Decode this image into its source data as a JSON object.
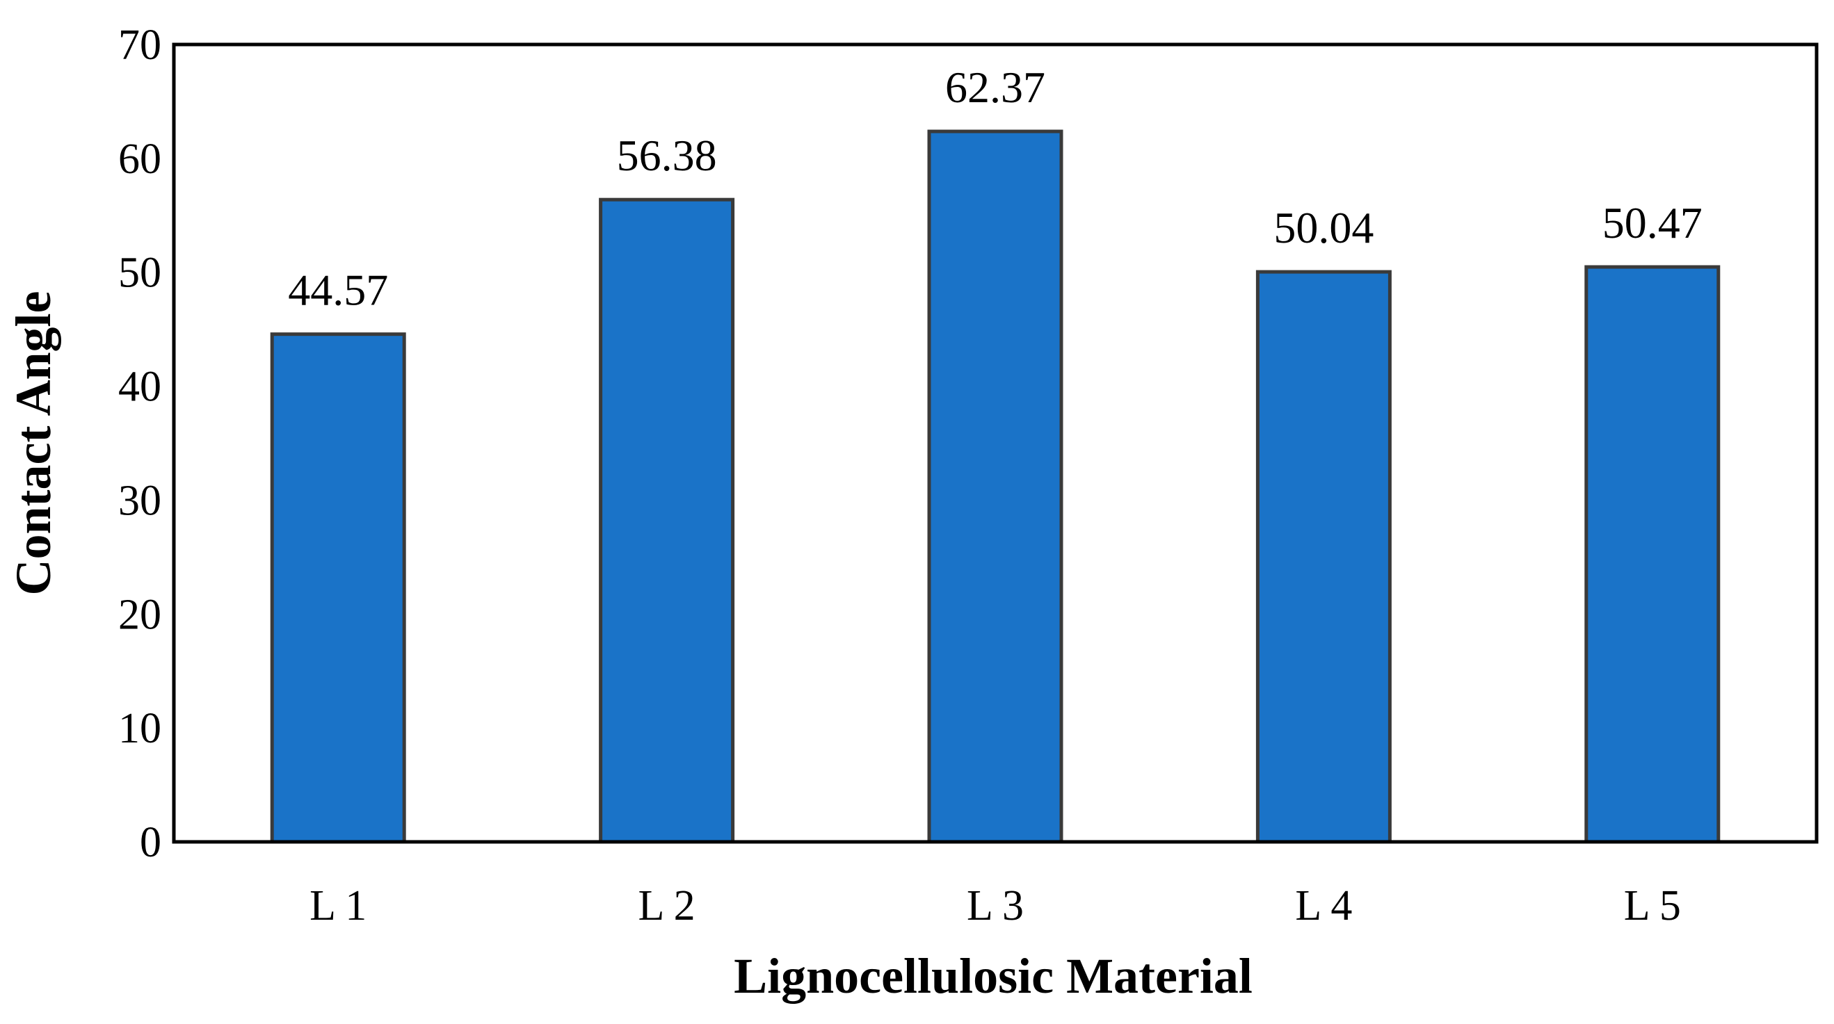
{
  "chart_data": {
    "type": "bar",
    "categories": [
      "L 1",
      "L 2",
      "L 3",
      "L 4",
      "L 5"
    ],
    "values": [
      44.57,
      56.38,
      62.37,
      50.04,
      50.47
    ],
    "data_labels": [
      "44.57",
      "56.38",
      "62.37",
      "50.04",
      "50.47"
    ],
    "title": "",
    "xlabel": "Lignocellulosic Material",
    "ylabel": "Contact Angle",
    "ylim": [
      0,
      70
    ],
    "yticks": [
      0,
      10,
      20,
      30,
      40,
      50,
      60,
      70
    ],
    "grid": false,
    "legend": "none",
    "colors": {
      "bar_fill": "#1A73C8",
      "bar_stroke": "#3A3A3A",
      "axis": "#000000",
      "text": "#000000"
    }
  }
}
